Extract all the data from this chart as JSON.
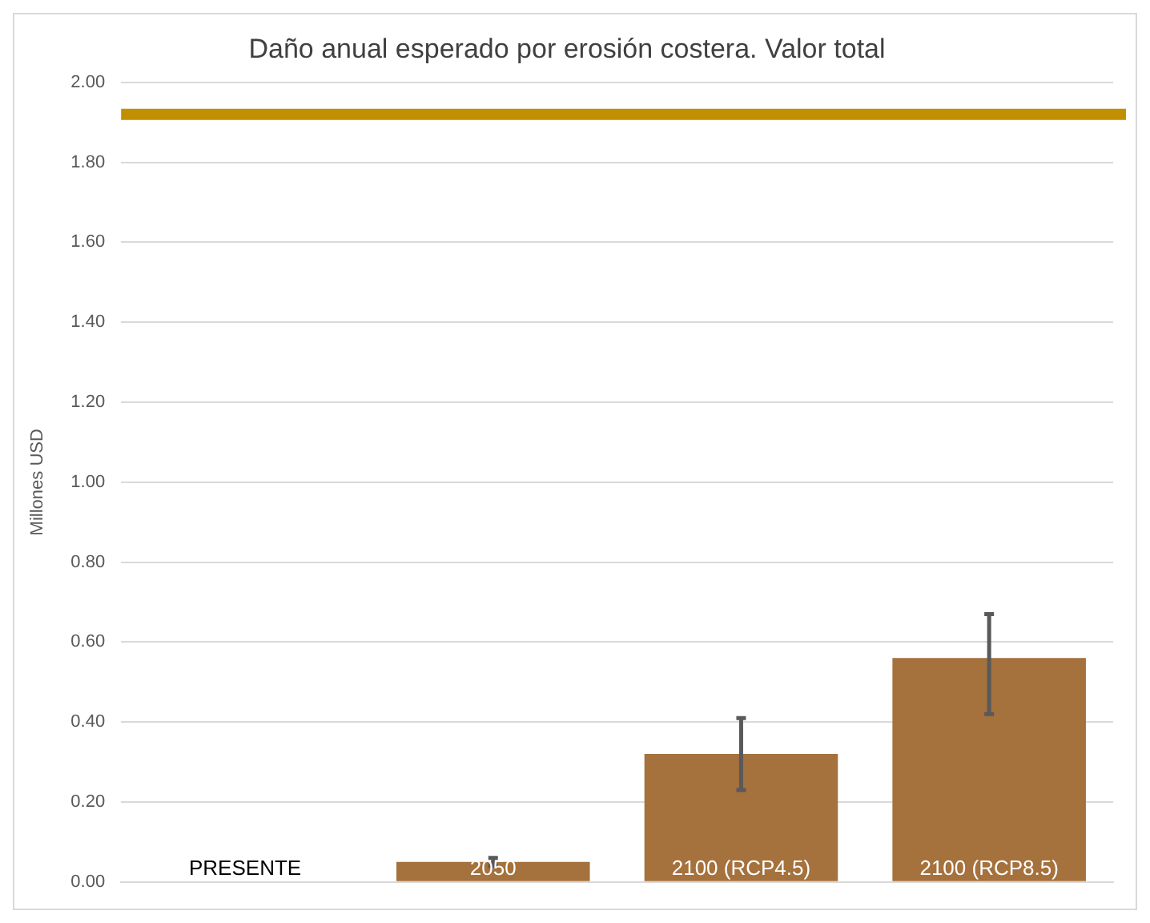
{
  "chart_data": {
    "type": "bar",
    "title": "Daño anual esperado por erosión costera. Valor total",
    "ylabel": "Millones USD",
    "categories": [
      "PRESENTE",
      "2050",
      "2100 (RCP4.5)",
      "2100 (RCP8.5)"
    ],
    "values": [
      null,
      0.05,
      0.32,
      0.56
    ],
    "errors": [
      null,
      [
        0.04,
        0.06
      ],
      [
        0.23,
        0.41
      ],
      [
        0.42,
        0.67
      ]
    ],
    "color": "#a5713c",
    "ylim": [
      0,
      2
    ],
    "yticks": [
      {
        "value": 0,
        "label": "0.00"
      },
      {
        "value": 0.2,
        "label": "0.20"
      },
      {
        "value": 0.4,
        "label": "0.40"
      },
      {
        "value": 0.6,
        "label": "0.60"
      },
      {
        "value": 0.8,
        "label": "0.80"
      },
      {
        "value": 1,
        "label": "1.00"
      },
      {
        "value": 1.2,
        "label": "1.20"
      },
      {
        "value": 1.4,
        "label": "1.40"
      },
      {
        "value": 1.6,
        "label": "1.60"
      },
      {
        "value": 1.8,
        "label": "1.80"
      },
      {
        "value": 2,
        "label": "2.00"
      }
    ],
    "ref_lines": [
      {
        "axis": "y",
        "value": 1.92,
        "color": "#c09000"
      }
    ],
    "grid": "y",
    "legend": false
  }
}
